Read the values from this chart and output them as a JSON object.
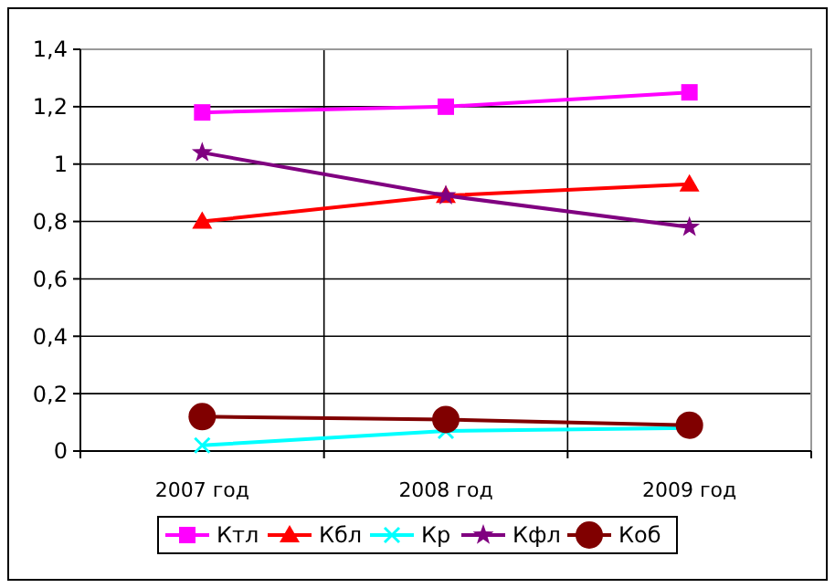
{
  "chart_data": {
    "type": "line",
    "categories": [
      "2007 год",
      "2008 год",
      "2009 год"
    ],
    "ylim": [
      0,
      1.4
    ],
    "yticks": [
      {
        "value": 0,
        "label": "0"
      },
      {
        "value": 0.2,
        "label": "0,2"
      },
      {
        "value": 0.4,
        "label": "0,4"
      },
      {
        "value": 0.6,
        "label": "0,6"
      },
      {
        "value": 0.8,
        "label": "0,8"
      },
      {
        "value": 1,
        "label": "1"
      },
      {
        "value": 1.2,
        "label": "1,2"
      },
      {
        "value": 1.4,
        "label": "1,4"
      }
    ],
    "grid": true,
    "legend": "bottom",
    "series": [
      {
        "name": "Ктл",
        "color": "#ff00ff",
        "marker": "square",
        "values": [
          1.18,
          1.2,
          1.25
        ]
      },
      {
        "name": "Кбл",
        "color": "#ff0000",
        "marker": "triangle",
        "values": [
          0.8,
          0.89,
          0.93
        ]
      },
      {
        "name": "Кр",
        "color": "#00ffff",
        "marker": "cross",
        "values": [
          0.02,
          0.07,
          0.08
        ]
      },
      {
        "name": "Кфл",
        "color": "#800080",
        "marker": "star",
        "values": [
          1.04,
          0.89,
          0.78
        ]
      },
      {
        "name": "Коб",
        "color": "#800000",
        "marker": "circle",
        "values": [
          0.12,
          0.11,
          0.09
        ]
      }
    ]
  }
}
